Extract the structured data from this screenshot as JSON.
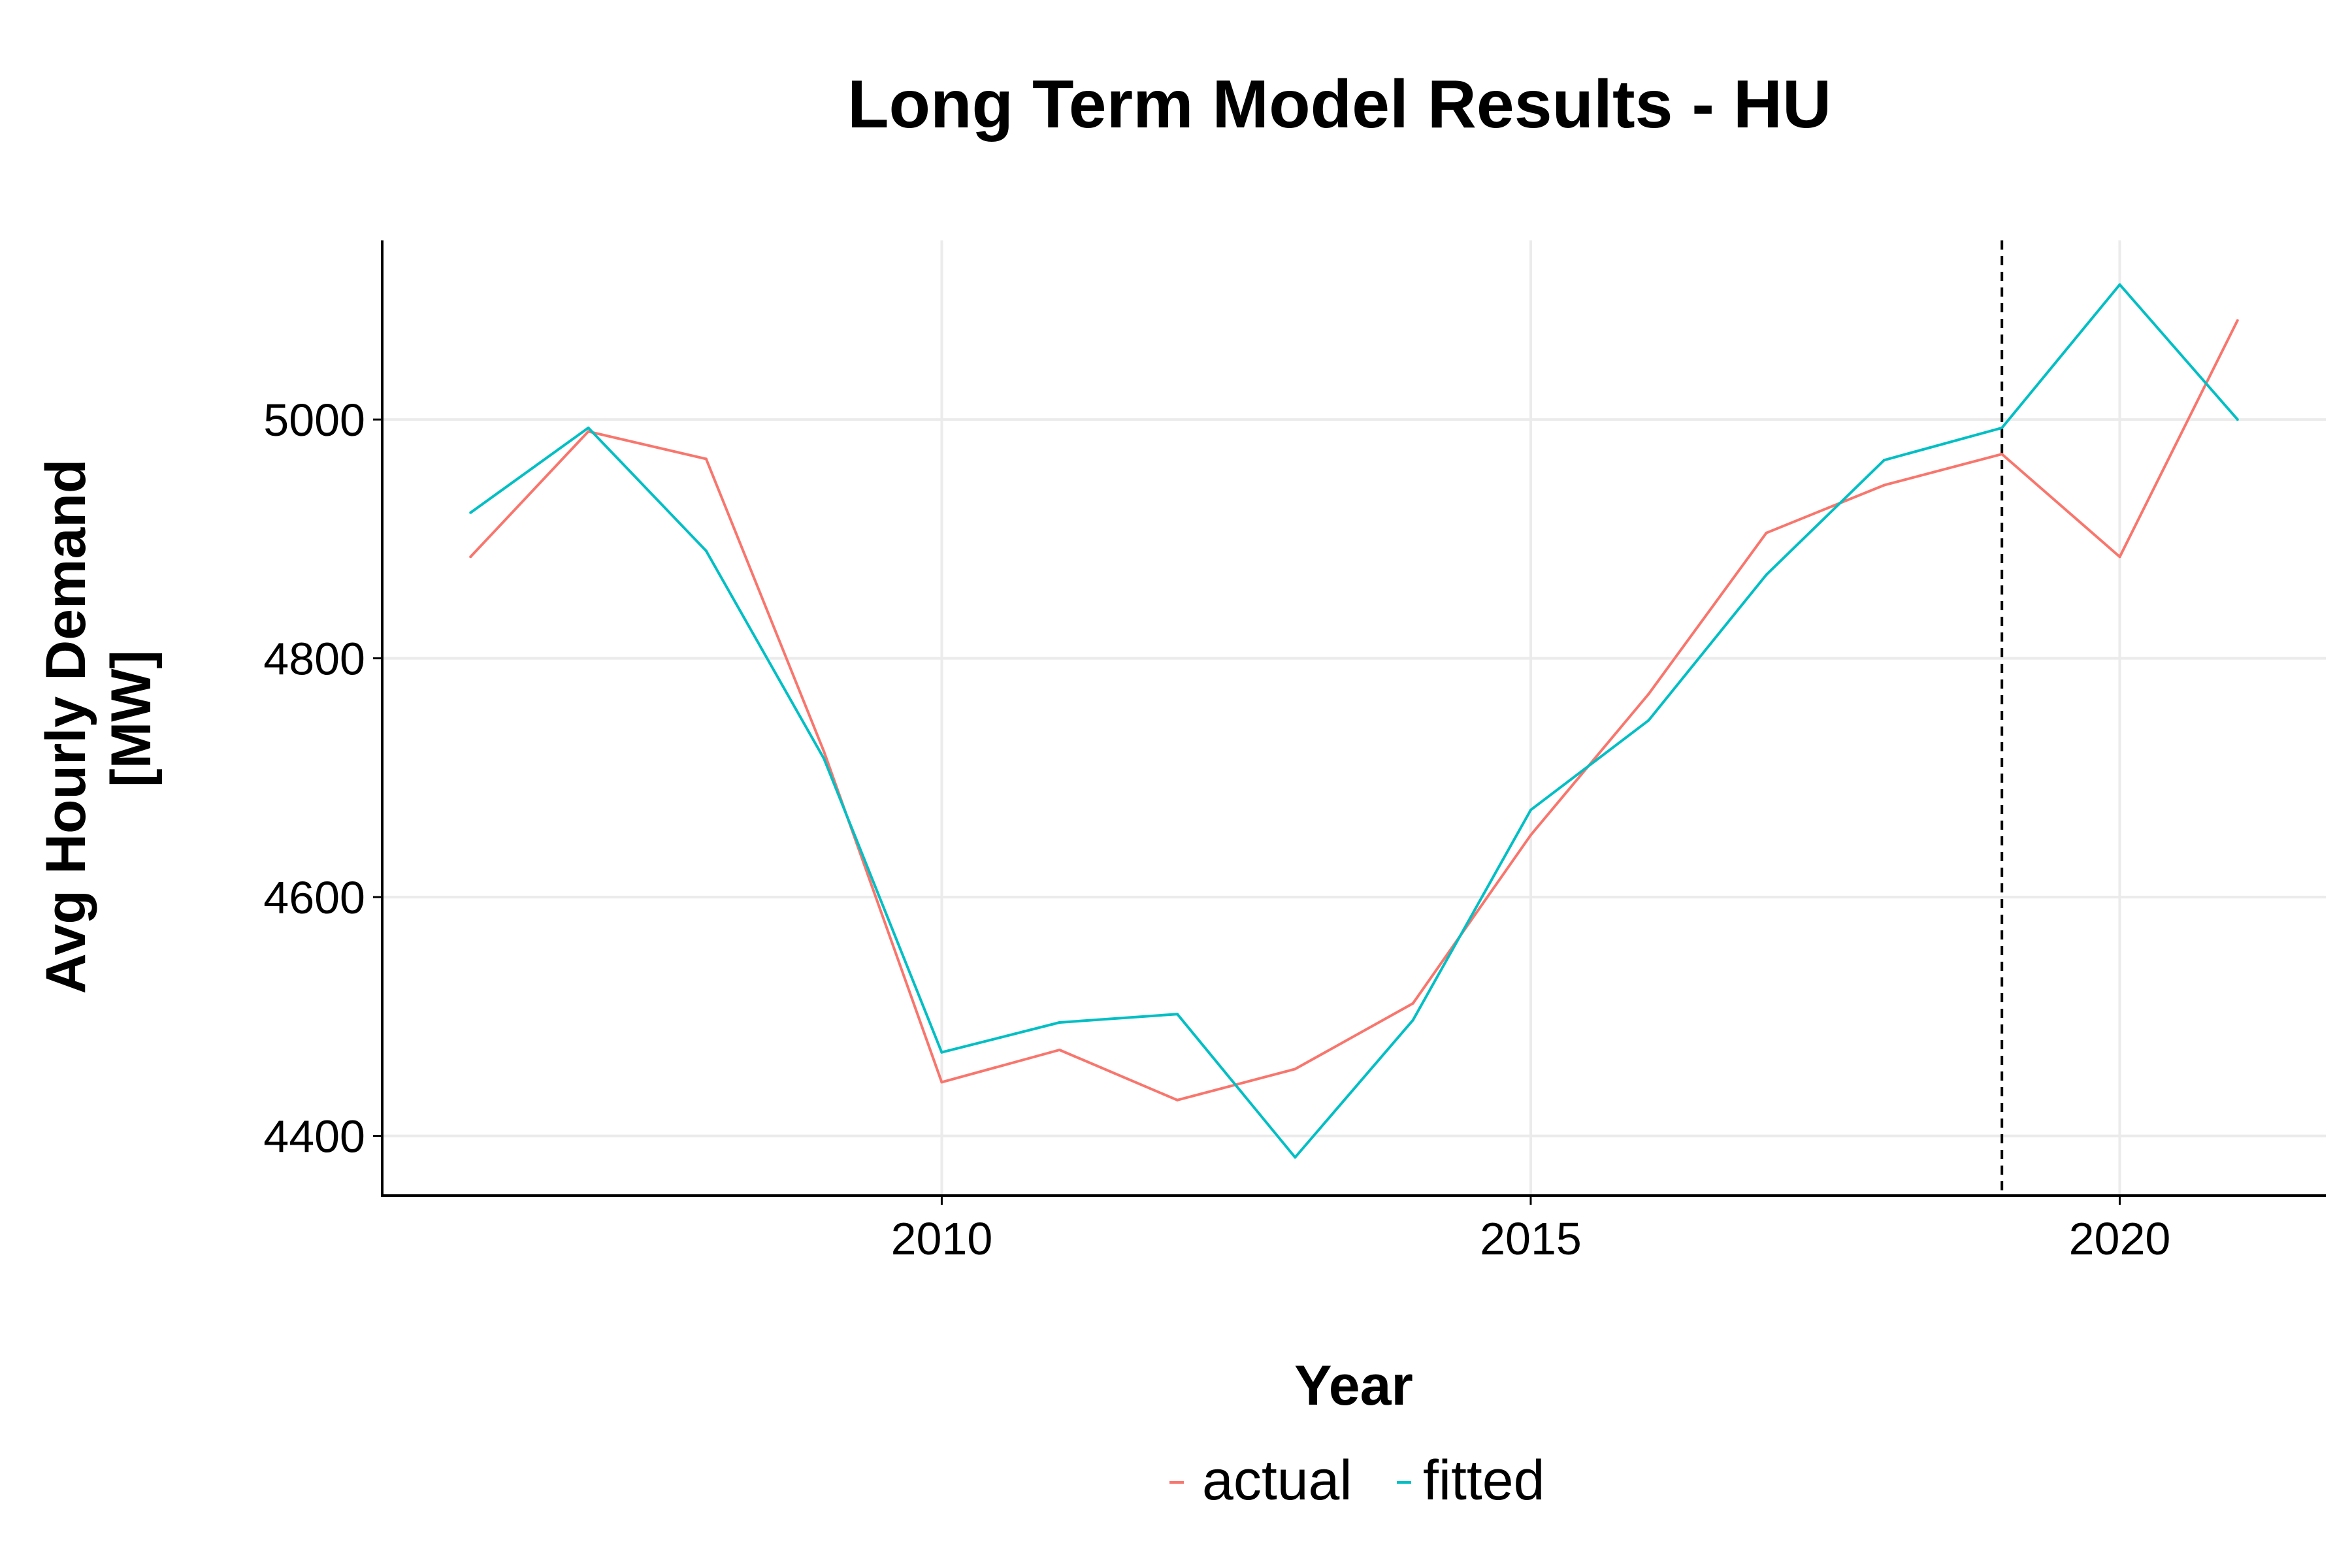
{
  "chart_data": {
    "type": "line",
    "title": "Long Term Model Results - HU",
    "xlabel": "Year",
    "ylabel": [
      "Avg Hourly Demand",
      "[MW]"
    ],
    "xlim": [
      2005.25,
      2021.75
    ],
    "ylim": [
      4350,
      5150
    ],
    "x_ticks": [
      2010,
      2015,
      2020
    ],
    "y_ticks": [
      4400,
      4600,
      4800,
      5000
    ],
    "grid": true,
    "legend_position": "bottom",
    "vline": {
      "x": 2019,
      "style": "dashed",
      "color": "#000000"
    },
    "x": [
      2006,
      2007,
      2008,
      2009,
      2010,
      2011,
      2012,
      2013,
      2014,
      2015,
      2016,
      2017,
      2018,
      2019,
      2020,
      2021
    ],
    "series": [
      {
        "name": "actual",
        "color": "#F8766D",
        "values": [
          4885,
          4990,
          4967,
          4722,
          4445,
          4472,
          4430,
          4456,
          4511,
          4652,
          4770,
          4905,
          4945,
          4971,
          4885,
          5083
        ]
      },
      {
        "name": "fitted",
        "color": "#00BFC4",
        "values": [
          4922,
          4993,
          4890,
          4716,
          4470,
          4495,
          4502,
          4382,
          4497,
          4673,
          4748,
          4870,
          4966,
          4993,
          5113,
          5000
        ]
      }
    ]
  }
}
